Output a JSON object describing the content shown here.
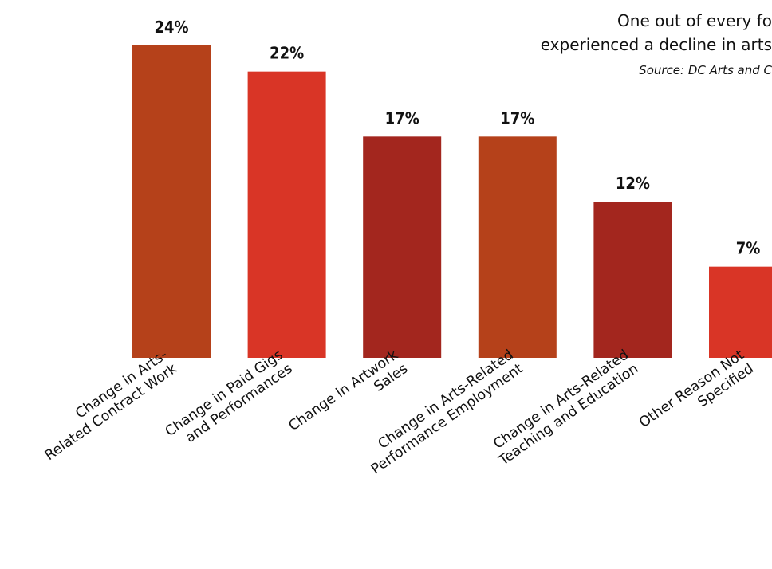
{
  "annotation": {
    "line1": "One out of every fo",
    "line2": "experienced a decline in arts",
    "source": "Source: DC Arts and C"
  },
  "chart_data": {
    "type": "bar",
    "categories": [
      [
        "Change in Arts-",
        "Related Contract Work"
      ],
      [
        "Change in Paid Gigs",
        "and Performances"
      ],
      [
        "Change in Artwork",
        "Sales"
      ],
      [
        "Change in Arts-Related",
        "Performance Employment"
      ],
      [
        "Change in Arts-Related",
        "Teaching and Education"
      ],
      [
        "Other Reason Not",
        "Specified"
      ]
    ],
    "values": [
      24,
      22,
      17,
      17,
      12,
      7
    ],
    "value_labels": [
      "24%",
      "22%",
      "17%",
      "17%",
      "12%",
      "7%"
    ],
    "colors": [
      "#b5411a",
      "#d93526",
      "#a3261e",
      "#b5411a",
      "#a3261e",
      "#d93526"
    ],
    "ylim": [
      0,
      24
    ],
    "grid": false,
    "xlabel": "",
    "ylabel": ""
  }
}
